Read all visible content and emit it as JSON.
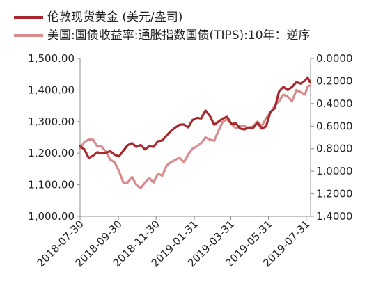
{
  "chart_data": {
    "type": "line",
    "legend": {
      "placement": "top-left",
      "entries": [
        "伦敦现货黄金 (美元/盎司)",
        "美国:国债收益率:通胀指数国债(TIPS):10年：逆序"
      ]
    },
    "x": {
      "range": [
        "2018-07-30",
        "2019-08-07"
      ],
      "tick_labels": [
        "2018-07-30",
        "2018-09-30",
        "2018-11-30",
        "2019-01-31",
        "2019-03-31",
        "2019-05-31",
        "2019-07-31"
      ]
    },
    "y_left": {
      "range": [
        1000,
        1500
      ],
      "tick_labels": [
        "1,500.00",
        "1,400.00",
        "1,300.00",
        "1,200.00",
        "1,100.00",
        "1,000.00"
      ]
    },
    "y_right": {
      "range": [
        0,
        1.4
      ],
      "inverted": true,
      "tick_labels": [
        "0.0000",
        "0.2000",
        "0.4000",
        "0.6000",
        "0.8000",
        "1.0000",
        "1.2000",
        "1.4000"
      ]
    },
    "grid": false,
    "series": [
      {
        "name": "伦敦现货黄金 (美元/盎司)",
        "axis": "left",
        "color": "#a8272c",
        "points": [
          [
            "2018-07-30",
            1222
          ],
          [
            "2018-08-06",
            1212
          ],
          [
            "2018-08-13",
            1185
          ],
          [
            "2018-08-20",
            1192
          ],
          [
            "2018-08-27",
            1203
          ],
          [
            "2018-09-03",
            1199
          ],
          [
            "2018-09-10",
            1202
          ],
          [
            "2018-09-17",
            1206
          ],
          [
            "2018-09-24",
            1195
          ],
          [
            "2018-10-01",
            1190
          ],
          [
            "2018-10-08",
            1208
          ],
          [
            "2018-10-15",
            1225
          ],
          [
            "2018-10-22",
            1232
          ],
          [
            "2018-10-29",
            1220
          ],
          [
            "2018-11-05",
            1226
          ],
          [
            "2018-11-12",
            1212
          ],
          [
            "2018-11-19",
            1222
          ],
          [
            "2018-11-26",
            1220
          ],
          [
            "2018-12-03",
            1238
          ],
          [
            "2018-12-10",
            1240
          ],
          [
            "2018-12-17",
            1256
          ],
          [
            "2018-12-24",
            1270
          ],
          [
            "2018-12-31",
            1281
          ],
          [
            "2019-01-07",
            1290
          ],
          [
            "2019-01-14",
            1291
          ],
          [
            "2019-01-21",
            1282
          ],
          [
            "2019-01-28",
            1305
          ],
          [
            "2019-02-04",
            1312
          ],
          [
            "2019-02-11",
            1310
          ],
          [
            "2019-02-18",
            1335
          ],
          [
            "2019-02-25",
            1318
          ],
          [
            "2019-03-04",
            1290
          ],
          [
            "2019-03-11",
            1300
          ],
          [
            "2019-03-18",
            1310
          ],
          [
            "2019-03-25",
            1315
          ],
          [
            "2019-04-01",
            1292
          ],
          [
            "2019-04-08",
            1295
          ],
          [
            "2019-04-15",
            1278
          ],
          [
            "2019-04-22",
            1275
          ],
          [
            "2019-04-29",
            1282
          ],
          [
            "2019-05-06",
            1280
          ],
          [
            "2019-05-13",
            1296
          ],
          [
            "2019-05-20",
            1278
          ],
          [
            "2019-05-27",
            1285
          ],
          [
            "2019-06-03",
            1330
          ],
          [
            "2019-06-10",
            1342
          ],
          [
            "2019-06-17",
            1395
          ],
          [
            "2019-06-24",
            1410
          ],
          [
            "2019-07-01",
            1400
          ],
          [
            "2019-07-08",
            1410
          ],
          [
            "2019-07-15",
            1425
          ],
          [
            "2019-07-22",
            1420
          ],
          [
            "2019-07-29",
            1430
          ],
          [
            "2019-08-02",
            1440
          ],
          [
            "2019-08-06",
            1425
          ]
        ]
      },
      {
        "name": "美国:国债收益率:通胀指数国债(TIPS):10年：逆序",
        "axis": "right",
        "color": "#d98b8c",
        "points": [
          [
            "2018-07-30",
            0.8
          ],
          [
            "2018-08-06",
            0.74
          ],
          [
            "2018-08-13",
            0.72
          ],
          [
            "2018-08-20",
            0.72
          ],
          [
            "2018-08-27",
            0.78
          ],
          [
            "2018-09-03",
            0.78
          ],
          [
            "2018-09-10",
            0.83
          ],
          [
            "2018-09-17",
            0.9
          ],
          [
            "2018-09-24",
            0.92
          ],
          [
            "2018-10-01",
            1.0
          ],
          [
            "2018-10-08",
            1.1
          ],
          [
            "2018-10-15",
            1.1
          ],
          [
            "2018-10-22",
            1.05
          ],
          [
            "2018-10-29",
            1.12
          ],
          [
            "2018-11-05",
            1.15
          ],
          [
            "2018-11-12",
            1.1
          ],
          [
            "2018-11-19",
            1.06
          ],
          [
            "2018-11-26",
            1.1
          ],
          [
            "2018-12-03",
            1.02
          ],
          [
            "2018-12-10",
            1.04
          ],
          [
            "2018-12-17",
            0.95
          ],
          [
            "2018-12-24",
            0.92
          ],
          [
            "2018-12-31",
            0.9
          ],
          [
            "2019-01-07",
            0.88
          ],
          [
            "2019-01-14",
            0.92
          ],
          [
            "2019-01-21",
            0.85
          ],
          [
            "2019-01-28",
            0.8
          ],
          [
            "2019-02-04",
            0.78
          ],
          [
            "2019-02-11",
            0.75
          ],
          [
            "2019-02-18",
            0.7
          ],
          [
            "2019-02-25",
            0.72
          ],
          [
            "2019-03-04",
            0.73
          ],
          [
            "2019-03-11",
            0.64
          ],
          [
            "2019-03-18",
            0.56
          ],
          [
            "2019-03-25",
            0.54
          ],
          [
            "2019-04-01",
            0.58
          ],
          [
            "2019-04-08",
            0.62
          ],
          [
            "2019-04-15",
            0.6
          ],
          [
            "2019-04-22",
            0.6
          ],
          [
            "2019-04-29",
            0.62
          ],
          [
            "2019-05-06",
            0.6
          ],
          [
            "2019-05-13",
            0.56
          ],
          [
            "2019-05-20",
            0.6
          ],
          [
            "2019-05-27",
            0.53
          ],
          [
            "2019-06-03",
            0.48
          ],
          [
            "2019-06-10",
            0.42
          ],
          [
            "2019-06-17",
            0.38
          ],
          [
            "2019-06-24",
            0.32
          ],
          [
            "2019-07-01",
            0.34
          ],
          [
            "2019-07-08",
            0.38
          ],
          [
            "2019-07-15",
            0.28
          ],
          [
            "2019-07-22",
            0.3
          ],
          [
            "2019-07-29",
            0.32
          ],
          [
            "2019-08-02",
            0.25
          ],
          [
            "2019-08-06",
            0.24
          ]
        ]
      }
    ]
  }
}
